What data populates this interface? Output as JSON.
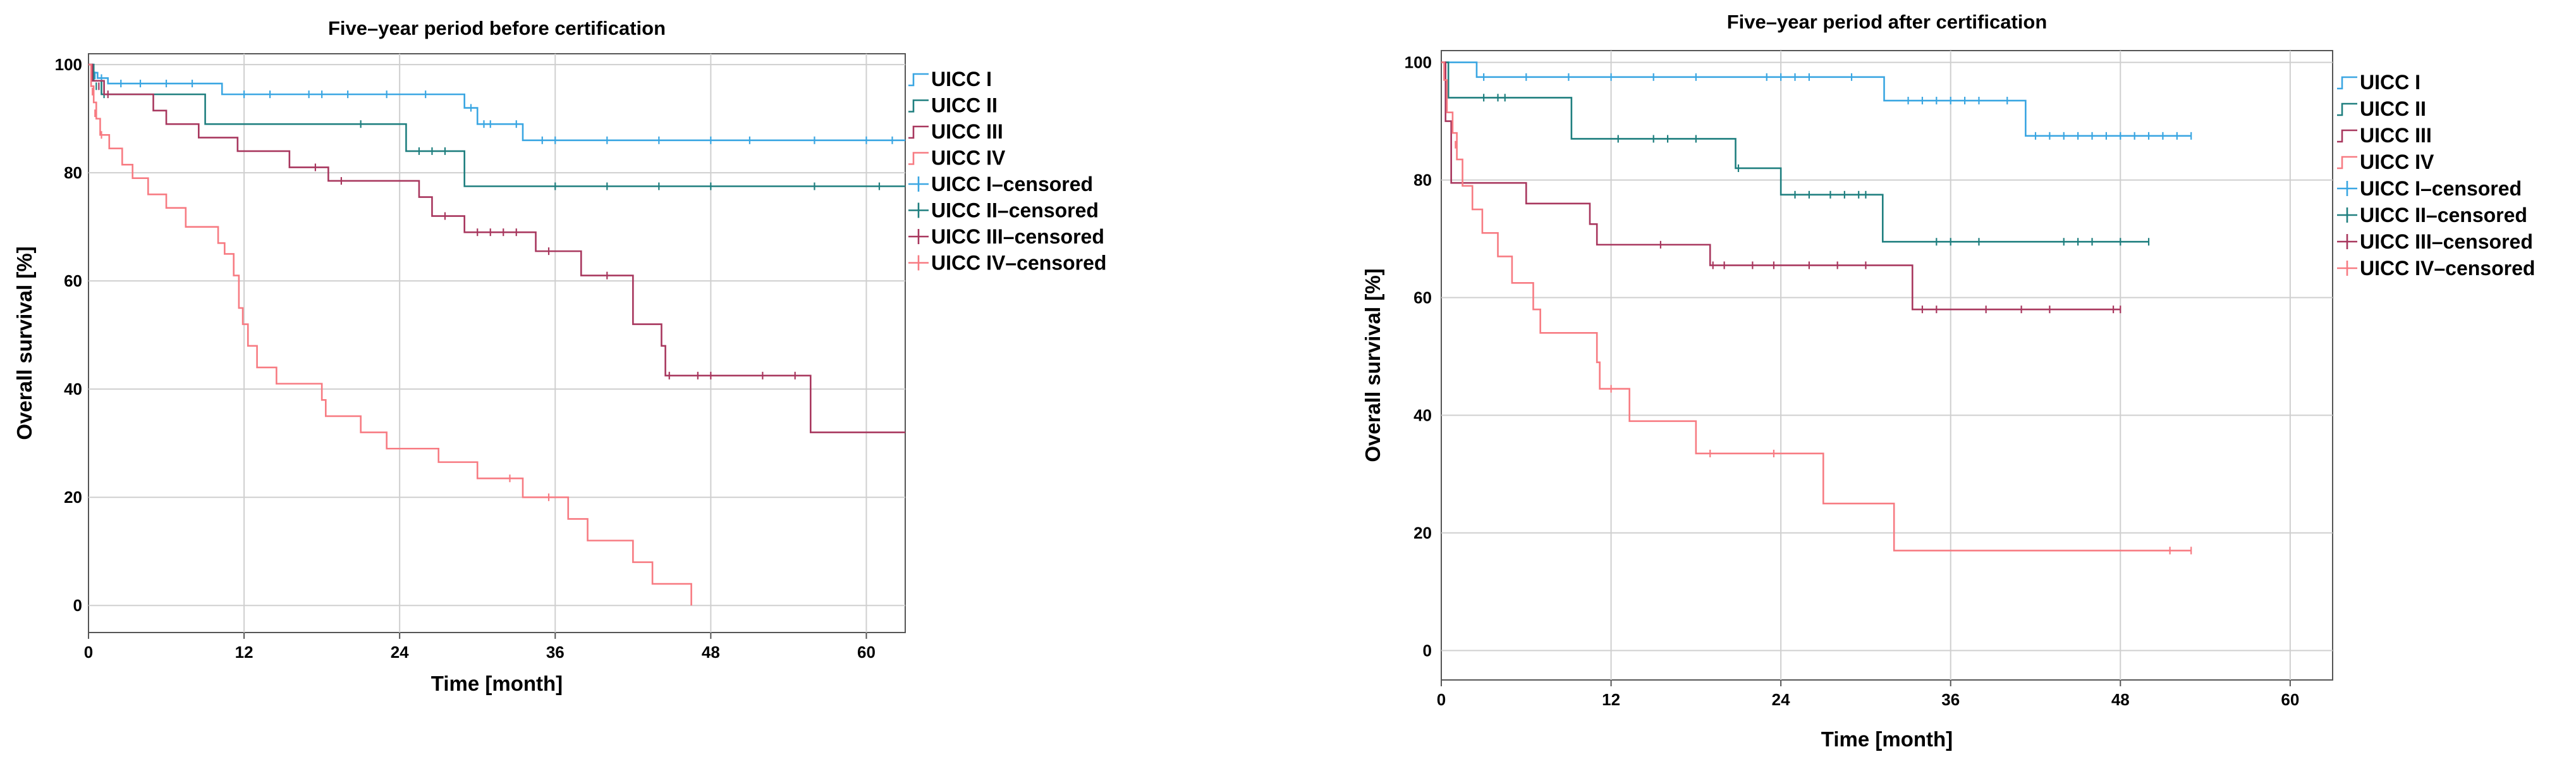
{
  "chart_data": [
    {
      "type": "line",
      "subtype": "kaplan-meier",
      "title": "Five–year period before certification",
      "xlabel": "Time [month]",
      "ylabel": "Overall survival [%]",
      "xlim": [
        0,
        63
      ],
      "ylim": [
        -5,
        102
      ],
      "xticks": [
        "0",
        "12",
        "24",
        "36",
        "48",
        "60"
      ],
      "yticks": [
        "0",
        "20",
        "40",
        "60",
        "80",
        "100"
      ],
      "grid": true,
      "legend_position": "top-right",
      "legend": [
        "UICC I",
        "UICC II",
        "UICC III",
        "UICC IV",
        "UICC I–censored",
        "UICC II–censored",
        "UICC III–censored",
        "UICC IV–censored"
      ],
      "series": [
        {
          "name": "UICC I",
          "color": "#3aa6e2",
          "steps": [
            [
              0,
              100
            ],
            [
              0.3,
              98.5
            ],
            [
              0.7,
              97.5
            ],
            [
              1.5,
              96.5
            ],
            [
              10.3,
              94.5
            ],
            [
              29,
              92
            ],
            [
              30,
              89
            ],
            [
              33.5,
              86
            ],
            [
              63,
              86
            ]
          ],
          "censored": [
            [
              0.5,
              98
            ],
            [
              1,
              97.5
            ],
            [
              2.5,
              96.5
            ],
            [
              4,
              96.5
            ],
            [
              6,
              96.5
            ],
            [
              8,
              96.5
            ],
            [
              12,
              94.5
            ],
            [
              14,
              94.5
            ],
            [
              17,
              94.5
            ],
            [
              18,
              94.5
            ],
            [
              20,
              94.5
            ],
            [
              23,
              94.5
            ],
            [
              26,
              94.5
            ],
            [
              29.5,
              92
            ],
            [
              30.5,
              89
            ],
            [
              31,
              89
            ],
            [
              33,
              89
            ],
            [
              35,
              86
            ],
            [
              36,
              86
            ],
            [
              40,
              86
            ],
            [
              44,
              86
            ],
            [
              48,
              86
            ],
            [
              51,
              86
            ],
            [
              56,
              86
            ],
            [
              60,
              86
            ],
            [
              62,
              86
            ]
          ]
        },
        {
          "name": "UICC II",
          "color": "#1f7f7f",
          "steps": [
            [
              0,
              100
            ],
            [
              0.4,
              97
            ],
            [
              1,
              94.5
            ],
            [
              5,
              94.5
            ],
            [
              9,
              89
            ],
            [
              24.5,
              84
            ],
            [
              29,
              77.5
            ],
            [
              63,
              77.5
            ]
          ],
          "censored": [
            [
              0.6,
              96
            ],
            [
              1.2,
              94.5
            ],
            [
              21,
              89
            ],
            [
              25.5,
              84
            ],
            [
              26.5,
              84
            ],
            [
              27.5,
              84
            ],
            [
              36,
              77.5
            ],
            [
              40,
              77.5
            ],
            [
              44,
              77.5
            ],
            [
              48,
              77.5
            ],
            [
              56,
              77.5
            ],
            [
              61,
              77.5
            ]
          ]
        },
        {
          "name": "UICC III",
          "color": "#a8375e",
          "steps": [
            [
              0,
              100
            ],
            [
              0.3,
              97
            ],
            [
              1.2,
              94.5
            ],
            [
              5,
              91.5
            ],
            [
              6,
              89
            ],
            [
              8.5,
              86.5
            ],
            [
              11.5,
              84
            ],
            [
              15.5,
              81
            ],
            [
              18.5,
              78.5
            ],
            [
              25.5,
              75.5
            ],
            [
              26.5,
              72
            ],
            [
              29,
              69
            ],
            [
              34.5,
              65.5
            ],
            [
              38,
              61
            ],
            [
              42,
              52
            ],
            [
              44.2,
              48
            ],
            [
              44.5,
              42.5
            ],
            [
              55.5,
              42.5
            ],
            [
              55.7,
              32
            ],
            [
              63,
              32
            ]
          ],
          "censored": [
            [
              0.8,
              96
            ],
            [
              1.5,
              94.5
            ],
            [
              17.5,
              81
            ],
            [
              19.5,
              78.5
            ],
            [
              27.5,
              72
            ],
            [
              30,
              69
            ],
            [
              31,
              69
            ],
            [
              32,
              69
            ],
            [
              33,
              69
            ],
            [
              35.5,
              65.5
            ],
            [
              40,
              61
            ],
            [
              44.8,
              42.5
            ],
            [
              47,
              42.5
            ],
            [
              48,
              42.5
            ],
            [
              52,
              42.5
            ],
            [
              54.5,
              42.5
            ]
          ]
        },
        {
          "name": "UICC IV",
          "color": "#f77b82",
          "steps": [
            [
              0,
              100
            ],
            [
              0.2,
              96
            ],
            [
              0.4,
              93
            ],
            [
              0.6,
              90
            ],
            [
              0.9,
              87
            ],
            [
              1.6,
              84.5
            ],
            [
              2.6,
              81.5
            ],
            [
              3.4,
              79
            ],
            [
              4.6,
              76
            ],
            [
              6,
              73.5
            ],
            [
              7.5,
              70
            ],
            [
              10,
              67
            ],
            [
              10.5,
              65
            ],
            [
              11.2,
              61
            ],
            [
              11.6,
              55
            ],
            [
              11.9,
              52
            ],
            [
              12.3,
              48
            ],
            [
              13,
              44
            ],
            [
              14.5,
              41
            ],
            [
              18,
              38
            ],
            [
              18.3,
              35
            ],
            [
              21,
              32
            ],
            [
              23,
              29
            ],
            [
              27,
              26.5
            ],
            [
              30,
              23.5
            ],
            [
              33.5,
              20
            ],
            [
              37,
              16
            ],
            [
              38.5,
              12
            ],
            [
              42,
              8
            ],
            [
              43.5,
              4
            ],
            [
              46.5,
              4
            ],
            [
              46.5,
              0
            ]
          ],
          "censored": [
            [
              0.3,
              95
            ],
            [
              0.5,
              91
            ],
            [
              1,
              87
            ],
            [
              32.5,
              23.5
            ],
            [
              35.5,
              20
            ]
          ]
        }
      ]
    },
    {
      "type": "line",
      "subtype": "kaplan-meier",
      "title": "Five–year period after certification",
      "xlabel": "Time [month]",
      "ylabel": "Overall survival [%]",
      "xlim": [
        0,
        63
      ],
      "ylim": [
        -5,
        102
      ],
      "xticks": [
        "0",
        "12",
        "24",
        "36",
        "48",
        "60"
      ],
      "yticks": [
        "0",
        "20",
        "40",
        "60",
        "80",
        "100"
      ],
      "grid": true,
      "legend_position": "top-right",
      "legend": [
        "UICC I",
        "UICC II",
        "UICC III",
        "UICC IV",
        "UICC I–censored",
        "UICC II–censored",
        "UICC III–censored",
        "UICC IV–censored"
      ],
      "series": [
        {
          "name": "UICC I",
          "color": "#3aa6e2",
          "steps": [
            [
              0,
              100
            ],
            [
              2.5,
              97.5
            ],
            [
              31,
              97.5
            ],
            [
              31.3,
              93.5
            ],
            [
              41,
              93.5
            ],
            [
              41.3,
              87.5
            ],
            [
              53,
              87.5
            ]
          ],
          "censored": [
            [
              3,
              97.5
            ],
            [
              6,
              97.5
            ],
            [
              9,
              97.5
            ],
            [
              12,
              97.5
            ],
            [
              15,
              97.5
            ],
            [
              18,
              97.5
            ],
            [
              23,
              97.5
            ],
            [
              24,
              97.5
            ],
            [
              25,
              97.5
            ],
            [
              26,
              97.5
            ],
            [
              29,
              97.5
            ],
            [
              33,
              93.5
            ],
            [
              34,
              93.5
            ],
            [
              35,
              93.5
            ],
            [
              36,
              93.5
            ],
            [
              37,
              93.5
            ],
            [
              38,
              93.5
            ],
            [
              40,
              93.5
            ],
            [
              42,
              87.5
            ],
            [
              43,
              87.5
            ],
            [
              44,
              87.5
            ],
            [
              45,
              87.5
            ],
            [
              46,
              87.5
            ],
            [
              47,
              87.5
            ],
            [
              48,
              87.5
            ],
            [
              49,
              87.5
            ],
            [
              50,
              87.5
            ],
            [
              51,
              87.5
            ],
            [
              52,
              87.5
            ],
            [
              53,
              87.5
            ]
          ]
        },
        {
          "name": "UICC II",
          "color": "#1f7f7f",
          "steps": [
            [
              0,
              100
            ],
            [
              0.5,
              94
            ],
            [
              9,
              94
            ],
            [
              9.2,
              87
            ],
            [
              20.5,
              87
            ],
            [
              20.8,
              82
            ],
            [
              23.8,
              82
            ],
            [
              24,
              77.5
            ],
            [
              31,
              77.5
            ],
            [
              31.2,
              69.5
            ],
            [
              50,
              69.5
            ]
          ],
          "censored": [
            [
              3,
              94
            ],
            [
              4,
              94
            ],
            [
              4.5,
              94
            ],
            [
              12.5,
              87
            ],
            [
              15,
              87
            ],
            [
              16,
              87
            ],
            [
              18,
              87
            ],
            [
              21,
              82
            ],
            [
              25,
              77.5
            ],
            [
              26,
              77.5
            ],
            [
              27.5,
              77.5
            ],
            [
              28.5,
              77.5
            ],
            [
              29.5,
              77.5
            ],
            [
              30,
              77.5
            ],
            [
              35,
              69.5
            ],
            [
              36,
              69.5
            ],
            [
              38,
              69.5
            ],
            [
              44,
              69.5
            ],
            [
              45,
              69.5
            ],
            [
              46,
              69.5
            ],
            [
              48,
              69.5
            ],
            [
              50,
              69.5
            ]
          ]
        },
        {
          "name": "UICC III",
          "color": "#a8375e",
          "steps": [
            [
              0,
              100
            ],
            [
              0.3,
              90
            ],
            [
              0.7,
              79.5
            ],
            [
              6,
              76
            ],
            [
              10.5,
              72.5
            ],
            [
              11,
              69
            ],
            [
              19,
              65.5
            ],
            [
              33,
              65.5
            ],
            [
              33.3,
              58
            ],
            [
              48,
              58
            ]
          ],
          "censored": [
            [
              15.5,
              69
            ],
            [
              19.2,
              65.5
            ],
            [
              20,
              65.5
            ],
            [
              22,
              65.5
            ],
            [
              23.5,
              65.5
            ],
            [
              26,
              65.5
            ],
            [
              28,
              65.5
            ],
            [
              30,
              65.5
            ],
            [
              34,
              58
            ],
            [
              35,
              58
            ],
            [
              38.5,
              58
            ],
            [
              41,
              58
            ],
            [
              43,
              58
            ],
            [
              47.5,
              58
            ],
            [
              48,
              58
            ]
          ]
        },
        {
          "name": "UICC IV",
          "color": "#f77b82",
          "steps": [
            [
              0,
              100
            ],
            [
              0.2,
              97
            ],
            [
              0.4,
              91.5
            ],
            [
              0.8,
              88
            ],
            [
              1.1,
              83.5
            ],
            [
              1.5,
              79
            ],
            [
              2.2,
              75
            ],
            [
              2.9,
              71
            ],
            [
              4,
              67
            ],
            [
              5,
              62.5
            ],
            [
              6.5,
              58
            ],
            [
              7,
              54
            ],
            [
              11,
              49
            ],
            [
              11.2,
              44.5
            ],
            [
              13.3,
              39
            ],
            [
              18,
              33.5
            ],
            [
              26.8,
              33.5
            ],
            [
              27,
              25
            ],
            [
              31.8,
              25
            ],
            [
              32,
              17
            ],
            [
              53,
              17
            ]
          ],
          "censored": [
            [
              1,
              86
            ],
            [
              12,
              44.5
            ],
            [
              19,
              33.5
            ],
            [
              23.5,
              33.5
            ],
            [
              51.5,
              17
            ],
            [
              53,
              17
            ]
          ]
        }
      ]
    }
  ]
}
